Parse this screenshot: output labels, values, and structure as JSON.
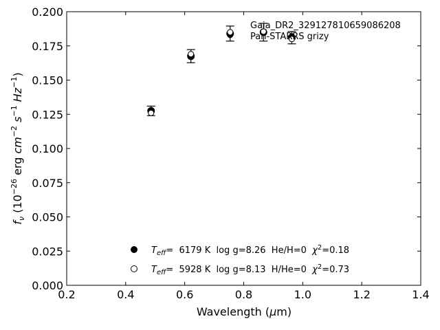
{
  "chart_data": {
    "type": "scatter",
    "xlabel": "Wavelength (μm)",
    "ylabel": "f_ν (10^-26 erg cm^-2 s^-1 Hz^-1)",
    "xlim": [
      0.2,
      1.4
    ],
    "ylim": [
      0.0,
      0.2
    ],
    "xticks": [
      0.2,
      0.4,
      0.6,
      0.8,
      1.0,
      1.2,
      1.4
    ],
    "xtick_labels": [
      "0.2",
      "0.4",
      "0.6",
      "0.8",
      "1.0",
      "1.2",
      "1.4"
    ],
    "yticks": [
      0.0,
      0.025,
      0.05,
      0.075,
      0.1,
      0.125,
      0.15,
      0.175,
      0.2
    ],
    "ytick_labels": [
      "0.000",
      "0.025",
      "0.050",
      "0.075",
      "0.100",
      "0.125",
      "0.150",
      "0.175",
      "0.200"
    ],
    "grid": false,
    "legend_placement": "bottom-center",
    "annotations": [
      "Gaia_DR2_329127810659086208",
      "Pan-STARRS grizy"
    ],
    "observed": {
      "x": [
        0.486,
        0.621,
        0.754,
        0.867,
        0.963
      ],
      "y": [
        0.1275,
        0.1675,
        0.184,
        0.185,
        0.181
      ],
      "yerr": [
        0.0035,
        0.0048,
        0.0055,
        0.0065,
        0.0045
      ],
      "marker_color": "#000000"
    },
    "series": [
      {
        "name_sym": "T",
        "name_sub": "eff",
        "name_rest": "=  6179 K  log g=8.26  He/H=0  ",
        "name_chi": "χ",
        "name_chi_sup": "2",
        "name_chi_rest": "=0.18",
        "marker": "filled-circle",
        "x": [
          0.486,
          0.621,
          0.754,
          0.867,
          0.963
        ],
        "y": [
          0.1275,
          0.167,
          0.183,
          0.185,
          0.182
        ]
      },
      {
        "name_sym": "T",
        "name_sub": "eff",
        "name_rest": "=  5928 K  log g=8.13  H/He=0  ",
        "name_chi": "χ",
        "name_chi_sup": "2",
        "name_chi_rest": "=0.73",
        "marker": "open-circle",
        "x": [
          0.486,
          0.621,
          0.754,
          0.867,
          0.963
        ],
        "y": [
          0.126,
          0.169,
          0.185,
          0.1855,
          0.18
        ]
      }
    ]
  }
}
